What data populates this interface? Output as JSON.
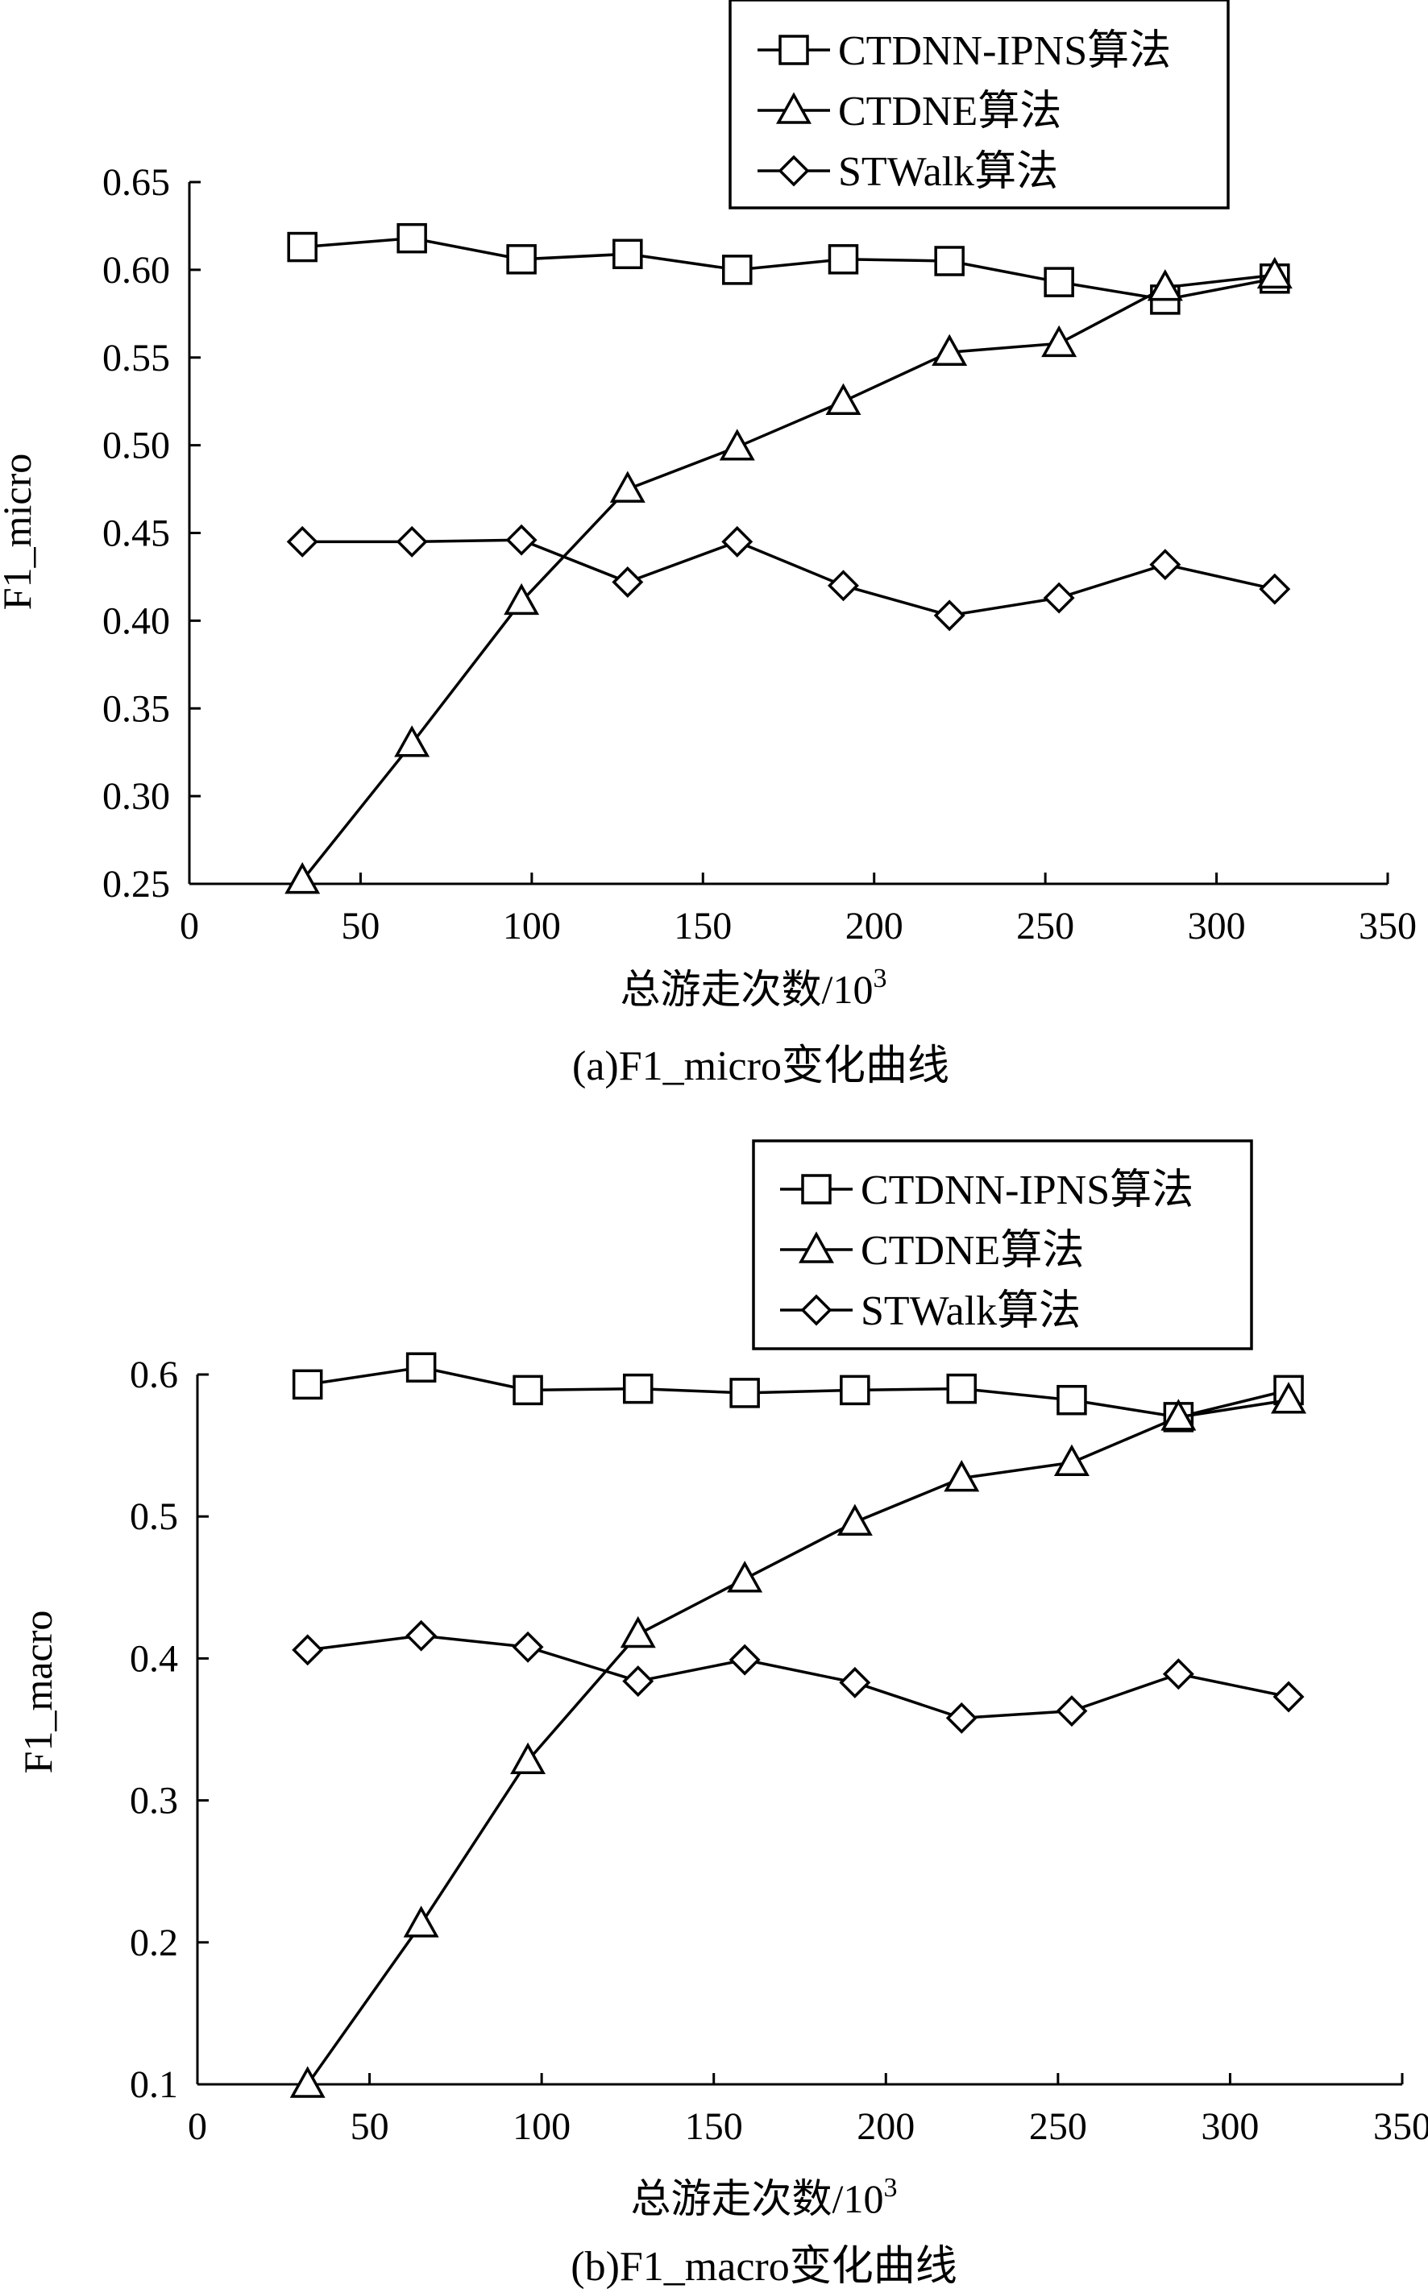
{
  "chart_data": [
    {
      "type": "line",
      "xlabel": "总游走次数/10",
      "xlabel_sup": "3",
      "ylabel": "F1_micro",
      "caption": "(a)F1_micro变化曲线",
      "xlim": [
        0,
        350
      ],
      "ylim": [
        0.25,
        0.65
      ],
      "xticks": [
        "0",
        "50",
        "100",
        "150",
        "200",
        "250",
        "300",
        "350"
      ],
      "yticks": [
        "0.25",
        "0.30",
        "0.35",
        "0.40",
        "0.45",
        "0.50",
        "0.55",
        "0.60",
        "0.65"
      ],
      "grid": false,
      "legend_position": "top-right",
      "x": [
        33,
        65,
        97,
        128,
        160,
        191,
        222,
        254,
        285,
        317
      ],
      "series": [
        {
          "name": "CTDNN-IPNS算法",
          "marker": "square",
          "values": [
            0.613,
            0.618,
            0.606,
            0.609,
            0.6,
            0.606,
            0.605,
            0.593,
            0.583,
            0.595
          ]
        },
        {
          "name": "CTDNE算法",
          "marker": "triangle",
          "values": [
            0.252,
            0.33,
            0.411,
            0.475,
            0.499,
            0.525,
            0.553,
            0.558,
            0.59,
            0.597
          ]
        },
        {
          "name": "STWalk算法",
          "marker": "diamond",
          "values": [
            0.445,
            0.445,
            0.446,
            0.422,
            0.445,
            0.42,
            0.403,
            0.413,
            0.432,
            0.418
          ]
        }
      ]
    },
    {
      "type": "line",
      "xlabel": "总游走次数/10",
      "xlabel_sup": "3",
      "ylabel": "F1_macro",
      "caption": "(b)F1_macro变化曲线",
      "xlim": [
        0,
        350
      ],
      "ylim": [
        0.1,
        0.6
      ],
      "xticks": [
        "0",
        "50",
        "100",
        "150",
        "200",
        "250",
        "300",
        "350"
      ],
      "yticks": [
        "0.1",
        "0.2",
        "0.3",
        "0.4",
        "0.5",
        "0.6"
      ],
      "grid": false,
      "legend_position": "top-right",
      "x": [
        32,
        65,
        96,
        128,
        159,
        191,
        222,
        254,
        285,
        317
      ],
      "series": [
        {
          "name": "CTDNN-IPNS算法",
          "marker": "square",
          "values": [
            0.593,
            0.605,
            0.589,
            0.59,
            0.587,
            0.589,
            0.59,
            0.582,
            0.57,
            0.589
          ]
        },
        {
          "name": "CTDNE算法",
          "marker": "triangle",
          "values": [
            0.1,
            0.213,
            0.328,
            0.417,
            0.456,
            0.496,
            0.527,
            0.538,
            0.57,
            0.582
          ]
        },
        {
          "name": "STWalk算法",
          "marker": "diamond",
          "values": [
            0.406,
            0.416,
            0.408,
            0.384,
            0.399,
            0.383,
            0.358,
            0.363,
            0.389,
            0.373
          ]
        }
      ]
    }
  ]
}
